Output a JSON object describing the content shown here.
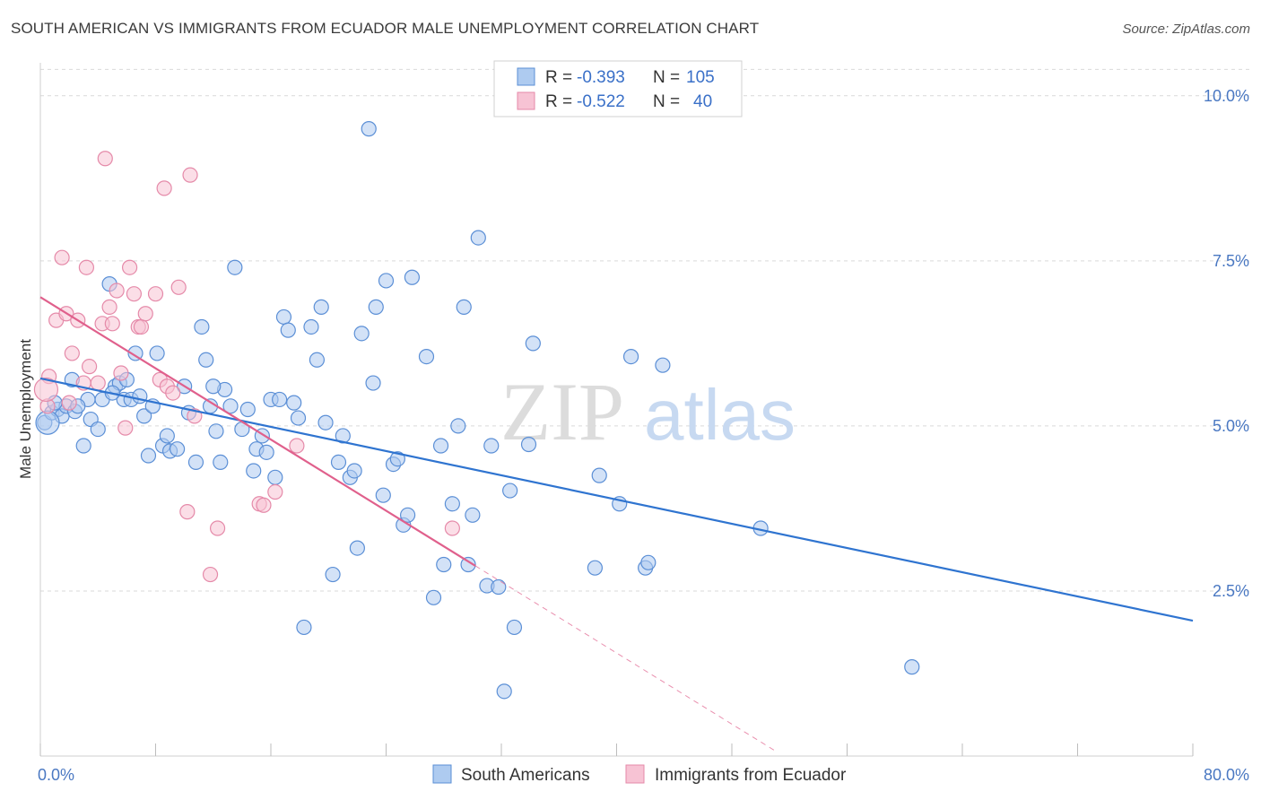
{
  "title": "SOUTH AMERICAN VS IMMIGRANTS FROM ECUADOR MALE UNEMPLOYMENT CORRELATION CHART",
  "source": "Source: ZipAtlas.com",
  "watermark": {
    "zip": "ZIP",
    "atlas": "atlas"
  },
  "colors": {
    "blue_fill": "#aecbf0",
    "blue_stroke": "#5b8fd6",
    "blue_line": "#2f74d0",
    "pink_fill": "#f7c3d4",
    "pink_stroke": "#e58aa9",
    "pink_line": "#e0608c",
    "tick_text": "#4a78c2",
    "grid": "#d9d9d9"
  },
  "legend": {
    "rows": [
      {
        "r_label": "R = ",
        "r_value": "-0.393",
        "n_label": "N = ",
        "n_value": "105"
      },
      {
        "r_label": "R = ",
        "r_value": "-0.522",
        "n_label": "N = ",
        "n_value": "40"
      }
    ]
  },
  "chart_data": {
    "type": "scatter",
    "xlabel": "",
    "ylabel": "Male Unemployment",
    "xlim": [
      0,
      80
    ],
    "ylim": [
      0,
      10.5
    ],
    "x_tick_labels": [
      {
        "value": 0,
        "label": "0.0%"
      },
      {
        "value": 80,
        "label": "80.0%"
      }
    ],
    "y_tick_labels": [
      {
        "value": 2.5,
        "label": "2.5%"
      },
      {
        "value": 5.0,
        "label": "5.0%"
      },
      {
        "value": 7.5,
        "label": "7.5%"
      },
      {
        "value": 10.0,
        "label": "10.0%"
      }
    ],
    "grid": "horizontal dashed",
    "legend_position": "top-center",
    "series": [
      {
        "name": "South Americans",
        "color": "blue",
        "trend": {
          "x0": 0,
          "y0": 5.72,
          "x1": 80,
          "y1": 2.05
        },
        "points": [
          [
            0.3,
            5.05
          ],
          [
            0.8,
            5.2
          ],
          [
            1.2,
            5.25
          ],
          [
            1.5,
            5.15
          ],
          [
            1.8,
            5.3
          ],
          [
            2.2,
            5.7
          ],
          [
            2.4,
            5.22
          ],
          [
            3.0,
            4.7
          ],
          [
            3.3,
            5.4
          ],
          [
            3.5,
            5.1
          ],
          [
            4.0,
            4.95
          ],
          [
            4.3,
            5.4
          ],
          [
            4.8,
            7.15
          ],
          [
            5.2,
            5.6
          ],
          [
            5.5,
            5.65
          ],
          [
            5.8,
            5.4
          ],
          [
            6.0,
            5.7
          ],
          [
            6.3,
            5.4
          ],
          [
            6.6,
            6.1
          ],
          [
            6.9,
            5.45
          ],
          [
            7.2,
            5.15
          ],
          [
            7.5,
            4.55
          ],
          [
            7.8,
            5.3
          ],
          [
            8.1,
            6.1
          ],
          [
            8.5,
            4.7
          ],
          [
            8.8,
            4.85
          ],
          [
            9.0,
            4.62
          ],
          [
            9.5,
            4.65
          ],
          [
            10.0,
            5.6
          ],
          [
            10.3,
            5.2
          ],
          [
            10.8,
            4.45
          ],
          [
            11.2,
            6.5
          ],
          [
            11.5,
            6.0
          ],
          [
            11.8,
            5.3
          ],
          [
            12.2,
            4.92
          ],
          [
            12.5,
            4.45
          ],
          [
            12.8,
            5.55
          ],
          [
            13.2,
            5.3
          ],
          [
            13.5,
            7.4
          ],
          [
            14.0,
            4.95
          ],
          [
            14.4,
            5.25
          ],
          [
            14.8,
            4.32
          ],
          [
            15.0,
            4.65
          ],
          [
            15.4,
            4.85
          ],
          [
            15.7,
            4.6
          ],
          [
            16.0,
            5.4
          ],
          [
            16.3,
            4.22
          ],
          [
            16.6,
            5.4
          ],
          [
            16.9,
            6.65
          ],
          [
            17.2,
            6.45
          ],
          [
            17.6,
            5.35
          ],
          [
            17.9,
            5.12
          ],
          [
            18.3,
            1.95
          ],
          [
            18.8,
            6.5
          ],
          [
            19.2,
            6.0
          ],
          [
            19.5,
            6.8
          ],
          [
            19.8,
            5.05
          ],
          [
            20.3,
            2.75
          ],
          [
            20.7,
            4.45
          ],
          [
            21.0,
            4.85
          ],
          [
            21.5,
            4.22
          ],
          [
            21.8,
            4.32
          ],
          [
            22.0,
            3.15
          ],
          [
            22.3,
            6.4
          ],
          [
            22.8,
            9.5
          ],
          [
            23.1,
            5.65
          ],
          [
            23.3,
            6.8
          ],
          [
            23.8,
            3.95
          ],
          [
            24.0,
            7.2
          ],
          [
            24.5,
            4.42
          ],
          [
            24.8,
            4.5
          ],
          [
            25.2,
            3.5
          ],
          [
            25.5,
            3.65
          ],
          [
            25.8,
            7.25
          ],
          [
            26.8,
            6.05
          ],
          [
            27.3,
            2.4
          ],
          [
            27.8,
            4.7
          ],
          [
            28.0,
            2.9
          ],
          [
            28.6,
            3.82
          ],
          [
            29.0,
            5.0
          ],
          [
            29.4,
            6.8
          ],
          [
            29.7,
            2.9
          ],
          [
            30.0,
            3.65
          ],
          [
            30.4,
            7.85
          ],
          [
            31.0,
            2.58
          ],
          [
            31.3,
            4.7
          ],
          [
            31.8,
            2.56
          ],
          [
            32.2,
            0.98
          ],
          [
            32.6,
            4.02
          ],
          [
            32.9,
            1.95
          ],
          [
            33.9,
            4.72
          ],
          [
            34.2,
            6.25
          ],
          [
            38.5,
            2.85
          ],
          [
            38.8,
            4.25
          ],
          [
            40.2,
            3.82
          ],
          [
            41.0,
            6.05
          ],
          [
            42.0,
            2.85
          ],
          [
            42.2,
            2.93
          ],
          [
            43.2,
            5.92
          ],
          [
            50.0,
            3.45
          ],
          [
            60.5,
            1.35
          ],
          [
            12.0,
            5.6
          ],
          [
            2.6,
            5.3
          ],
          [
            5.0,
            5.5
          ],
          [
            1.0,
            5.35
          ]
        ],
        "large_points": [
          [
            0.5,
            5.05
          ]
        ]
      },
      {
        "name": "Immigrants from Ecuador",
        "color": "pink",
        "trend": {
          "x0": 0,
          "y0": 6.95,
          "x1": 30.2,
          "y1": 2.88,
          "dash_to_x": 51,
          "dash_to_y": 0.08
        },
        "points": [
          [
            0.5,
            5.3
          ],
          [
            0.6,
            5.75
          ],
          [
            1.1,
            6.6
          ],
          [
            1.5,
            7.55
          ],
          [
            1.8,
            6.7
          ],
          [
            2.0,
            5.35
          ],
          [
            2.2,
            6.1
          ],
          [
            2.6,
            6.6
          ],
          [
            3.0,
            5.65
          ],
          [
            3.2,
            7.4
          ],
          [
            3.4,
            5.9
          ],
          [
            4.0,
            5.65
          ],
          [
            4.3,
            6.55
          ],
          [
            4.5,
            9.05
          ],
          [
            4.8,
            6.8
          ],
          [
            5.0,
            6.55
          ],
          [
            5.3,
            7.05
          ],
          [
            5.6,
            5.8
          ],
          [
            5.9,
            4.97
          ],
          [
            6.2,
            7.4
          ],
          [
            6.5,
            7.0
          ],
          [
            6.8,
            6.5
          ],
          [
            7.0,
            6.5
          ],
          [
            7.3,
            6.7
          ],
          [
            8.0,
            7.0
          ],
          [
            8.3,
            5.7
          ],
          [
            8.6,
            8.6
          ],
          [
            8.8,
            5.6
          ],
          [
            9.2,
            5.5
          ],
          [
            9.6,
            7.1
          ],
          [
            10.2,
            3.7
          ],
          [
            10.4,
            8.8
          ],
          [
            10.7,
            5.15
          ],
          [
            11.8,
            2.75
          ],
          [
            12.3,
            3.45
          ],
          [
            15.2,
            3.82
          ],
          [
            15.5,
            3.8
          ],
          [
            16.3,
            4.0
          ],
          [
            17.8,
            4.7
          ],
          [
            28.6,
            3.45
          ]
        ],
        "large_points": [
          [
            0.4,
            5.55
          ]
        ]
      }
    ]
  },
  "bottom_legend": [
    {
      "label": "South Americans",
      "color": "blue"
    },
    {
      "label": "Immigrants from Ecuador",
      "color": "pink"
    }
  ]
}
